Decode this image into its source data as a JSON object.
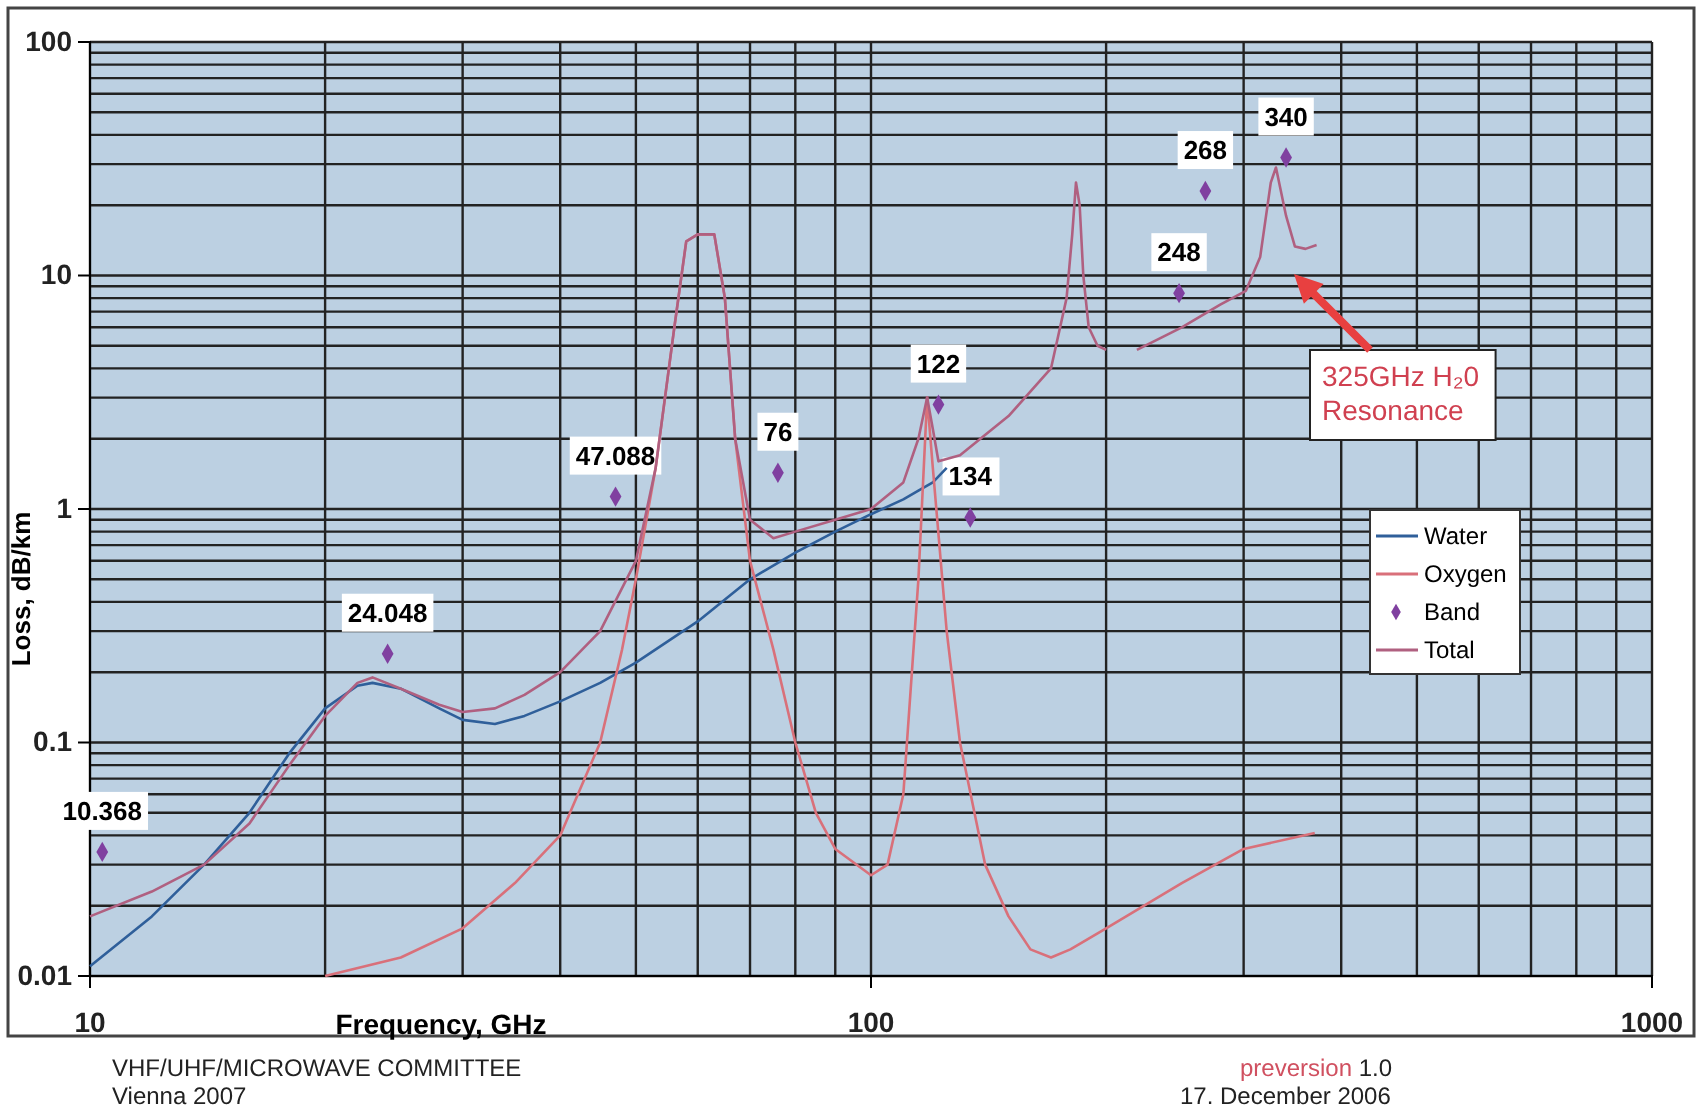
{
  "chart_data": {
    "type": "line",
    "xlabel": "Frequency, GHz",
    "ylabel": "Loss, dB/km",
    "log": "xy",
    "grid": true,
    "legend": "right",
    "xlim": [
      10,
      1000
    ],
    "xticks": [
      10,
      100,
      1000
    ],
    "ylim": [
      0.01,
      100
    ],
    "yticks": [
      0.01,
      0.1,
      1,
      10,
      100
    ],
    "series": [
      {
        "name": "Water",
        "color": "#2f5f9a",
        "x": [
          10,
          12,
          14,
          16,
          18,
          20,
          22,
          23,
          25,
          28,
          30,
          33,
          36,
          40,
          45,
          50,
          60,
          70,
          80,
          90,
          100,
          110,
          115,
          120,
          125
        ],
        "values": [
          0.011,
          0.018,
          0.03,
          0.05,
          0.09,
          0.14,
          0.175,
          0.18,
          0.17,
          0.14,
          0.125,
          0.12,
          0.13,
          0.15,
          0.18,
          0.22,
          0.33,
          0.5,
          0.65,
          0.8,
          0.95,
          1.1,
          1.2,
          1.3,
          1.5
        ]
      },
      {
        "name": "Oxygen",
        "color": "#d9707a",
        "x": [
          20,
          25,
          30,
          35,
          40,
          45,
          48,
          50,
          53,
          56,
          58,
          60,
          63,
          65,
          67,
          70,
          75,
          80,
          85,
          90,
          100,
          105,
          110,
          115,
          118,
          120,
          125,
          130,
          140,
          150,
          160,
          170,
          180,
          200,
          250,
          300,
          370
        ],
        "values": [
          0.01,
          0.012,
          0.016,
          0.025,
          0.04,
          0.1,
          0.25,
          0.5,
          1.5,
          6,
          14,
          15,
          15,
          8,
          2,
          0.6,
          0.25,
          0.1,
          0.05,
          0.035,
          0.027,
          0.03,
          0.06,
          0.5,
          3,
          1.5,
          0.3,
          0.1,
          0.03,
          0.018,
          0.013,
          0.012,
          0.013,
          0.016,
          0.025,
          0.035,
          0.041
        ]
      },
      {
        "name": "Band",
        "type": "scatter",
        "marker": "diamond",
        "color": "#8040a0",
        "x": [
          10.368,
          24.048,
          47.088,
          76,
          122,
          134,
          248,
          268,
          340
        ],
        "values": [
          0.034,
          0.24,
          1.13,
          1.43,
          2.8,
          0.92,
          8.4,
          23,
          32
        ]
      },
      {
        "name": "Total",
        "color": "#b06080",
        "x": [
          10,
          12,
          14,
          16,
          18,
          20,
          22,
          23,
          25,
          28,
          30,
          33,
          36,
          40,
          45,
          50,
          53,
          56,
          58,
          60,
          63,
          65,
          67,
          70,
          75,
          80,
          90,
          100,
          110,
          115,
          118,
          120,
          122,
          130,
          150,
          170,
          178,
          181,
          183,
          185,
          187,
          190,
          195,
          200,
          210,
          219,
          250,
          280,
          302,
          315,
          325,
          330,
          340,
          349,
          360,
          372
        ],
        "values": [
          0.018,
          0.023,
          0.03,
          0.045,
          0.08,
          0.13,
          0.18,
          0.19,
          0.17,
          0.145,
          0.135,
          0.14,
          0.16,
          0.2,
          0.3,
          0.6,
          1.5,
          6,
          14,
          15,
          15,
          8,
          2,
          0.9,
          0.75,
          0.8,
          0.9,
          1.0,
          1.3,
          2,
          3,
          2.2,
          1.6,
          1.7,
          2.5,
          4,
          8,
          15,
          25,
          20,
          10,
          6,
          5,
          4.8,
          null,
          4.8,
          6,
          7.5,
          8.6,
          12,
          25,
          29,
          18,
          13.3,
          13,
          13.5
        ]
      }
    ],
    "annotations": [
      {
        "text": "10.368",
        "x": 10.368,
        "y": 0.034
      },
      {
        "text": "24.048",
        "x": 24.048,
        "y": 0.24
      },
      {
        "text": "47.088",
        "x": 47.088,
        "y": 1.13
      },
      {
        "text": "76",
        "x": 76,
        "y": 1.43
      },
      {
        "text": "122",
        "x": 122,
        "y": 2.8
      },
      {
        "text": "134",
        "x": 134,
        "y": 0.92
      },
      {
        "text": "248",
        "x": 248,
        "y": 8.4
      },
      {
        "text": "268",
        "x": 268,
        "y": 23
      },
      {
        "text": "340",
        "x": 340,
        "y": 32
      },
      "325GHz H₂0 Resonance",
      "VHF/UHF/MICROWAVE COMMITTEE",
      "Vienna 2007",
      "preversion 1.0",
      "17. December 2006"
    ]
  }
}
